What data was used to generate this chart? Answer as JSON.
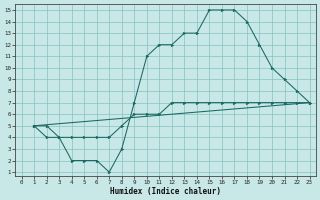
{
  "xlabel": "Humidex (Indice chaleur)",
  "bg_color": "#c8e8e8",
  "grid_color": "#88c0c0",
  "line_color": "#1a6860",
  "xlim_min": -0.5,
  "xlim_max": 23.5,
  "ylim_min": 0.7,
  "ylim_max": 15.5,
  "xticks": [
    0,
    1,
    2,
    3,
    4,
    5,
    6,
    7,
    8,
    9,
    10,
    11,
    12,
    13,
    14,
    15,
    16,
    17,
    18,
    19,
    20,
    21,
    22,
    23
  ],
  "yticks": [
    1,
    2,
    3,
    4,
    5,
    6,
    7,
    8,
    9,
    10,
    11,
    12,
    13,
    14,
    15
  ],
  "curve1_x": [
    1,
    2,
    3,
    4,
    5,
    6,
    7,
    8,
    9,
    10,
    11,
    12,
    13,
    14,
    15,
    16,
    17,
    18,
    19,
    20,
    21,
    22,
    23
  ],
  "curve1_y": [
    5,
    5,
    4,
    2,
    2,
    2,
    1,
    3,
    7,
    11,
    12,
    12,
    13,
    13,
    15,
    15,
    15,
    14,
    12,
    10,
    9,
    8,
    7
  ],
  "curve2_x": [
    1,
    23
  ],
  "curve2_y": [
    5,
    7
  ],
  "curve3_x": [
    1,
    2,
    3,
    4,
    5,
    6,
    7,
    8,
    9,
    10,
    11,
    12,
    13,
    14,
    15,
    16,
    17,
    18,
    19,
    20,
    21,
    22,
    23
  ],
  "curve3_y": [
    5,
    4,
    4,
    4,
    4,
    4,
    4,
    5,
    6,
    6,
    6,
    7,
    7,
    7,
    7,
    7,
    7,
    7,
    7,
    7,
    7,
    7,
    7
  ],
  "xlabel_fontsize": 5.5,
  "tick_fontsize": 4.2,
  "lw": 0.75,
  "marker_size": 2.0
}
